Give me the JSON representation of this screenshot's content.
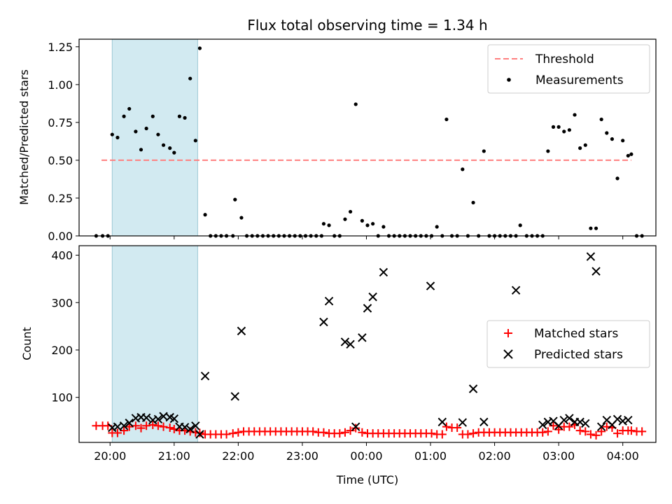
{
  "figure": {
    "title": "Flux total observing time = 1.34 h",
    "shaded_interval": {
      "start": "20:02",
      "end": "21:22",
      "color": "#add8e6"
    },
    "x_axis": {
      "label": "Time (UTC)",
      "range": [
        "19:31",
        "04:31"
      ],
      "ticks": [
        "20:00",
        "21:00",
        "22:00",
        "23:00",
        "00:00",
        "01:00",
        "02:00",
        "03:00",
        "04:00"
      ]
    }
  },
  "chart_data": [
    {
      "type": "scatter",
      "ylabel": "Matched/Predicted stars",
      "ylim": [
        0,
        1.3
      ],
      "yticks": [
        "0.00",
        "0.25",
        "0.50",
        "0.75",
        "1.00",
        "1.25"
      ],
      "legend": {
        "placement": "top-right",
        "entries": [
          "Threshold",
          "Measurements"
        ]
      },
      "threshold": {
        "name": "Threshold",
        "value": 0.5,
        "x_start": "19:52",
        "x_end": "04:08",
        "color": "#ff7f7f"
      },
      "series": [
        {
          "name": "Measurements",
          "color": "#000000",
          "points": [
            [
              "19:47",
              0
            ],
            [
              "19:53",
              0
            ],
            [
              "19:58",
              0
            ],
            [
              "20:02",
              0.67
            ],
            [
              "20:07",
              0.65
            ],
            [
              "20:13",
              0.79
            ],
            [
              "20:18",
              0.84
            ],
            [
              "20:24",
              0.69
            ],
            [
              "20:29",
              0.57
            ],
            [
              "20:34",
              0.71
            ],
            [
              "20:40",
              0.79
            ],
            [
              "20:45",
              0.67
            ],
            [
              "20:50",
              0.6
            ],
            [
              "20:56",
              0.58
            ],
            [
              "21:00",
              0.55
            ],
            [
              "21:05",
              0.79
            ],
            [
              "21:10",
              0.78
            ],
            [
              "21:15",
              1.04
            ],
            [
              "21:20",
              0.63
            ],
            [
              "21:24",
              1.24
            ],
            [
              "21:29",
              0.14
            ],
            [
              "21:34",
              0
            ],
            [
              "21:39",
              0
            ],
            [
              "21:44",
              0
            ],
            [
              "21:49",
              0
            ],
            [
              "21:55",
              0
            ],
            [
              "21:57",
              0.24
            ],
            [
              "22:03",
              0.12
            ],
            [
              "22:08",
              0
            ],
            [
              "22:13",
              0
            ],
            [
              "22:18",
              0
            ],
            [
              "22:23",
              0
            ],
            [
              "22:28",
              0
            ],
            [
              "22:33",
              0
            ],
            [
              "22:38",
              0
            ],
            [
              "22:43",
              0
            ],
            [
              "22:48",
              0
            ],
            [
              "22:53",
              0
            ],
            [
              "22:58",
              0
            ],
            [
              "23:03",
              0
            ],
            [
              "23:08",
              0
            ],
            [
              "23:13",
              0
            ],
            [
              "23:18",
              0
            ],
            [
              "23:20",
              0.08
            ],
            [
              "23:25",
              0.07
            ],
            [
              "23:30",
              0
            ],
            [
              "23:35",
              0
            ],
            [
              "23:40",
              0.11
            ],
            [
              "23:45",
              0.16
            ],
            [
              "23:50",
              0.87
            ],
            [
              "23:56",
              0.1
            ],
            [
              "00:01",
              0.07
            ],
            [
              "00:06",
              0.08
            ],
            [
              "00:11",
              0
            ],
            [
              "00:16",
              0.06
            ],
            [
              "00:21",
              0
            ],
            [
              "00:26",
              0
            ],
            [
              "00:31",
              0
            ],
            [
              "00:36",
              0
            ],
            [
              "00:41",
              0
            ],
            [
              "00:46",
              0
            ],
            [
              "00:51",
              0
            ],
            [
              "00:56",
              0
            ],
            [
              "01:01",
              0
            ],
            [
              "01:06",
              0.06
            ],
            [
              "01:11",
              0
            ],
            [
              "01:15",
              0.77
            ],
            [
              "01:20",
              0
            ],
            [
              "01:25",
              0
            ],
            [
              "01:30",
              0.44
            ],
            [
              "01:35",
              0
            ],
            [
              "01:40",
              0.22
            ],
            [
              "01:45",
              0
            ],
            [
              "01:50",
              0.56
            ],
            [
              "01:55",
              0
            ],
            [
              "02:00",
              0
            ],
            [
              "02:05",
              0
            ],
            [
              "02:10",
              0
            ],
            [
              "02:15",
              0
            ],
            [
              "02:20",
              0
            ],
            [
              "02:24",
              0.07
            ],
            [
              "02:30",
              0
            ],
            [
              "02:35",
              0
            ],
            [
              "02:40",
              0
            ],
            [
              "02:45",
              0
            ],
            [
              "02:50",
              0.56
            ],
            [
              "02:55",
              0.72
            ],
            [
              "03:00",
              0.72
            ],
            [
              "03:05",
              0.69
            ],
            [
              "03:10",
              0.7
            ],
            [
              "03:15",
              0.8
            ],
            [
              "03:20",
              0.58
            ],
            [
              "03:25",
              0.6
            ],
            [
              "03:30",
              0.05
            ],
            [
              "03:35",
              0.05
            ],
            [
              "03:40",
              0.77
            ],
            [
              "03:45",
              0.68
            ],
            [
              "03:50",
              0.64
            ],
            [
              "03:55",
              0.38
            ],
            [
              "04:00",
              0.63
            ],
            [
              "04:05",
              0.53
            ],
            [
              "04:08",
              0.54
            ],
            [
              "04:13",
              0
            ],
            [
              "04:18",
              0
            ]
          ]
        }
      ]
    },
    {
      "type": "scatter",
      "ylabel": "Count",
      "ylim": [
        5,
        420
      ],
      "yticks": [
        "100",
        "200",
        "300",
        "400"
      ],
      "legend": {
        "placement": "center-right",
        "entries": [
          "Matched stars",
          "Predicted stars"
        ]
      },
      "series": [
        {
          "name": "Matched stars",
          "marker": "+",
          "color": "#ff0000",
          "points": [
            [
              "19:47",
              40
            ],
            [
              "19:53",
              40
            ],
            [
              "19:58",
              40
            ],
            [
              "20:02",
              25
            ],
            [
              "20:07",
              25
            ],
            [
              "20:13",
              30
            ],
            [
              "20:18",
              38
            ],
            [
              "20:24",
              40
            ],
            [
              "20:29",
              35
            ],
            [
              "20:34",
              40
            ],
            [
              "20:40",
              42
            ],
            [
              "20:45",
              40
            ],
            [
              "20:50",
              38
            ],
            [
              "20:56",
              36
            ],
            [
              "21:00",
              33
            ],
            [
              "21:05",
              30
            ],
            [
              "21:10",
              30
            ],
            [
              "21:15",
              28
            ],
            [
              "21:20",
              26
            ],
            [
              "21:24",
              25
            ],
            [
              "21:29",
              22
            ],
            [
              "21:34",
              22
            ],
            [
              "21:39",
              22
            ],
            [
              "21:44",
              22
            ],
            [
              "21:49",
              22
            ],
            [
              "21:55",
              24
            ],
            [
              "22:00",
              26
            ],
            [
              "22:05",
              28
            ],
            [
              "22:10",
              28
            ],
            [
              "22:15",
              28
            ],
            [
              "22:20",
              28
            ],
            [
              "22:25",
              28
            ],
            [
              "22:30",
              28
            ],
            [
              "22:35",
              28
            ],
            [
              "22:40",
              28
            ],
            [
              "22:45",
              28
            ],
            [
              "22:50",
              28
            ],
            [
              "22:55",
              28
            ],
            [
              "23:00",
              28
            ],
            [
              "23:05",
              28
            ],
            [
              "23:10",
              28
            ],
            [
              "23:15",
              26
            ],
            [
              "23:20",
              26
            ],
            [
              "23:25",
              24
            ],
            [
              "23:30",
              24
            ],
            [
              "23:35",
              24
            ],
            [
              "23:40",
              26
            ],
            [
              "23:45",
              30
            ],
            [
              "23:50",
              35
            ],
            [
              "23:56",
              26
            ],
            [
              "00:01",
              24
            ],
            [
              "00:06",
              24
            ],
            [
              "00:11",
              24
            ],
            [
              "00:16",
              24
            ],
            [
              "00:21",
              24
            ],
            [
              "00:26",
              24
            ],
            [
              "00:31",
              24
            ],
            [
              "00:36",
              24
            ],
            [
              "00:41",
              24
            ],
            [
              "00:46",
              24
            ],
            [
              "00:51",
              24
            ],
            [
              "00:56",
              24
            ],
            [
              "01:01",
              24
            ],
            [
              "01:06",
              22
            ],
            [
              "01:11",
              22
            ],
            [
              "01:15",
              38
            ],
            [
              "01:20",
              36
            ],
            [
              "01:25",
              36
            ],
            [
              "01:30",
              22
            ],
            [
              "01:35",
              22
            ],
            [
              "01:40",
              24
            ],
            [
              "01:45",
              26
            ],
            [
              "01:50",
              26
            ],
            [
              "01:55",
              26
            ],
            [
              "02:00",
              26
            ],
            [
              "02:05",
              26
            ],
            [
              "02:10",
              26
            ],
            [
              "02:15",
              26
            ],
            [
              "02:20",
              26
            ],
            [
              "02:25",
              26
            ],
            [
              "02:30",
              26
            ],
            [
              "02:35",
              26
            ],
            [
              "02:40",
              26
            ],
            [
              "02:45",
              26
            ],
            [
              "02:50",
              28
            ],
            [
              "02:55",
              40
            ],
            [
              "03:00",
              32
            ],
            [
              "03:05",
              38
            ],
            [
              "03:10",
              38
            ],
            [
              "03:15",
              42
            ],
            [
              "03:20",
              30
            ],
            [
              "03:25",
              28
            ],
            [
              "03:30",
              22
            ],
            [
              "03:35",
              20
            ],
            [
              "03:40",
              28
            ],
            [
              "03:45",
              38
            ],
            [
              "03:50",
              36
            ],
            [
              "03:55",
              24
            ],
            [
              "04:00",
              30
            ],
            [
              "04:05",
              30
            ],
            [
              "04:08",
              30
            ],
            [
              "04:13",
              28
            ],
            [
              "04:18",
              28
            ]
          ]
        },
        {
          "name": "Predicted stars",
          "marker": "x",
          "color": "#000000",
          "points": [
            [
              "20:02",
              36
            ],
            [
              "20:07",
              38
            ],
            [
              "20:13",
              40
            ],
            [
              "20:18",
              46
            ],
            [
              "20:24",
              56
            ],
            [
              "20:29",
              58
            ],
            [
              "20:34",
              57
            ],
            [
              "20:40",
              52
            ],
            [
              "20:45",
              54
            ],
            [
              "20:50",
              60
            ],
            [
              "20:56",
              58
            ],
            [
              "21:00",
              55
            ],
            [
              "21:05",
              38
            ],
            [
              "21:10",
              37
            ],
            [
              "21:15",
              33
            ],
            [
              "21:20",
              40
            ],
            [
              "21:24",
              22
            ],
            [
              "21:29",
              145
            ],
            [
              "21:57",
              102
            ],
            [
              "22:03",
              240
            ],
            [
              "23:20",
              259
            ],
            [
              "23:25",
              303
            ],
            [
              "23:40",
              217
            ],
            [
              "23:45",
              212
            ],
            [
              "23:50",
              38
            ],
            [
              "23:56",
              226
            ],
            [
              "00:01",
              288
            ],
            [
              "00:06",
              312
            ],
            [
              "00:16",
              364
            ],
            [
              "01:00",
              335
            ],
            [
              "01:11",
              48
            ],
            [
              "01:30",
              47
            ],
            [
              "01:40",
              118
            ],
            [
              "01:50",
              48
            ],
            [
              "02:20",
              326
            ],
            [
              "02:45",
              42
            ],
            [
              "02:50",
              48
            ],
            [
              "02:55",
              50
            ],
            [
              "03:00",
              40
            ],
            [
              "03:05",
              52
            ],
            [
              "03:10",
              56
            ],
            [
              "03:15",
              48
            ],
            [
              "03:20",
              48
            ],
            [
              "03:25",
              45
            ],
            [
              "03:30",
              397
            ],
            [
              "03:35",
              366
            ],
            [
              "03:40",
              38
            ],
            [
              "03:45",
              52
            ],
            [
              "03:50",
              42
            ],
            [
              "03:55",
              54
            ],
            [
              "04:00",
              50
            ],
            [
              "04:05",
              52
            ]
          ]
        }
      ]
    }
  ]
}
